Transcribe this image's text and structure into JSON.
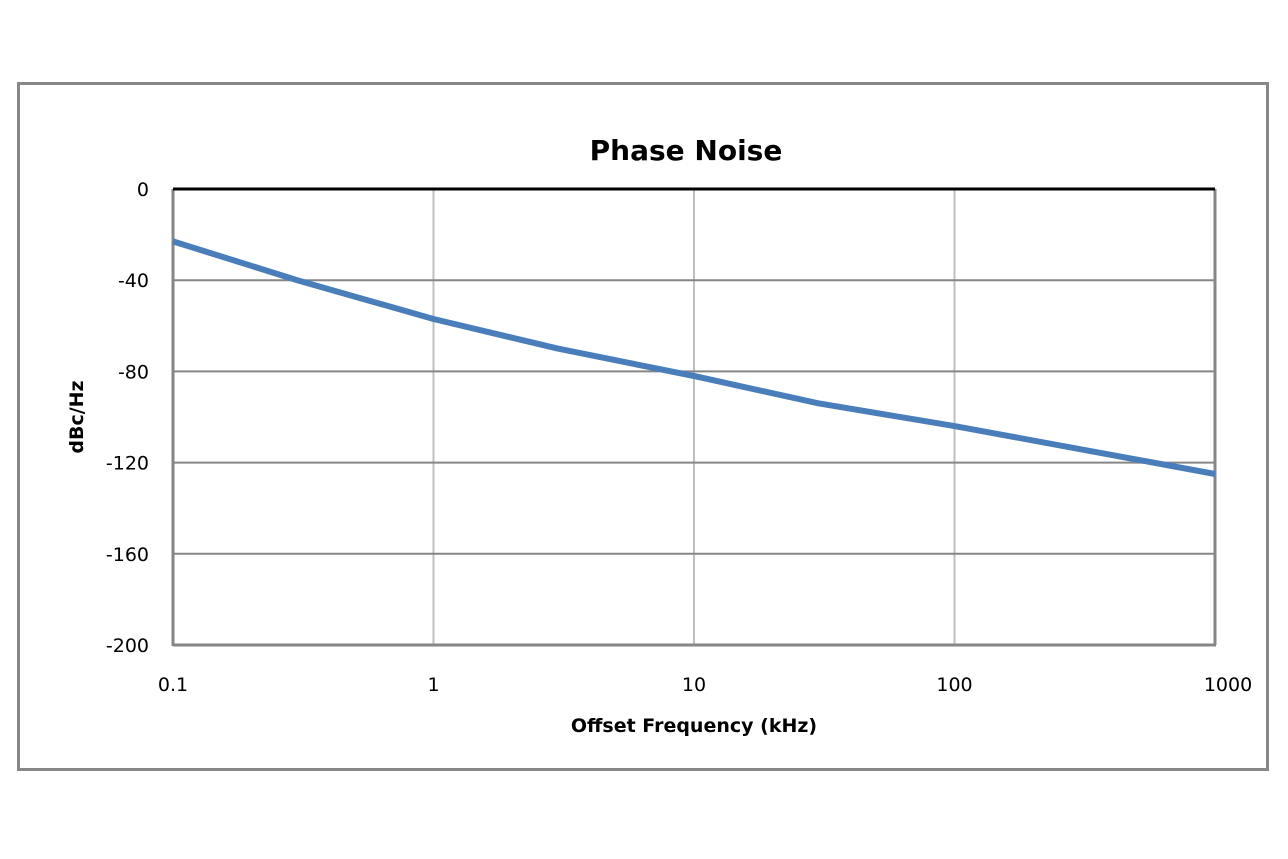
{
  "chart_data": {
    "type": "line",
    "title": "Phase Noise",
    "xlabel": "Offset Frequency (kHz)",
    "ylabel": "dBc/Hz",
    "x_scale": "log",
    "xlim": [
      0.1,
      1000
    ],
    "ylim": [
      -200,
      0
    ],
    "x_ticks": [
      0.1,
      1,
      10,
      100,
      1000
    ],
    "x_tick_labels": [
      "0.1",
      "1",
      "10",
      "100",
      "1000"
    ],
    "y_ticks": [
      0,
      -40,
      -80,
      -120,
      -160,
      -200
    ],
    "y_tick_labels": [
      "0",
      "-40",
      "-80",
      "-120",
      "-160",
      "-200"
    ],
    "grid": {
      "x": true,
      "y": true
    },
    "legend": null,
    "series": [
      {
        "name": "Phase Noise",
        "color": "#4a7ebb",
        "x": [
          0.1,
          0.3,
          1,
          3,
          10,
          30,
          100,
          300,
          1000
        ],
        "y": [
          -23,
          -40,
          -57,
          -70,
          -82,
          -94,
          -104,
          -114,
          -125
        ]
      }
    ]
  },
  "colors": {
    "frame_border": "#878787",
    "axis_line": "#868686",
    "top_border": "#000000",
    "h_grid": "#868686",
    "v_grid": "#bfbfbf",
    "series": "#4a7ebb"
  }
}
